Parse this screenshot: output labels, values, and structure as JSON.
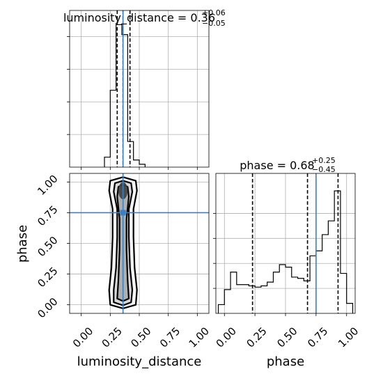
{
  "colors": {
    "truth": "#3b7fc4",
    "hist": "#000000",
    "quantile": "#000000",
    "grid": "#b0b0b0",
    "contour_fill_light": "#e8e8e8",
    "contour_fill_dark": "#404040",
    "points": "#000000"
  },
  "chart_data": [
    {
      "panel": "luminosity_distance marginal",
      "type": "histogram",
      "title_label": "luminosity_distance = 0.36",
      "title_sup": "+0.06",
      "title_sub": "−0.05",
      "xlim": [
        -0.1,
        1.1
      ],
      "ylim": [
        0,
        1.0
      ],
      "grid": true,
      "bins": [
        {
          "x0": 0.2,
          "x1": 0.25,
          "h": 0.07
        },
        {
          "x0": 0.25,
          "x1": 0.3,
          "h": 0.54
        },
        {
          "x0": 0.3,
          "x1": 0.35,
          "h": 1.0
        },
        {
          "x0": 0.35,
          "x1": 0.4,
          "h": 0.93
        },
        {
          "x0": 0.4,
          "x1": 0.45,
          "h": 0.18
        },
        {
          "x0": 0.45,
          "x1": 0.5,
          "h": 0.05
        },
        {
          "x0": 0.5,
          "x1": 0.55,
          "h": 0.02
        }
      ],
      "quantiles": [
        0.31,
        0.36,
        0.42
      ],
      "truth": 0.36
    },
    {
      "panel": "phase marginal",
      "type": "histogram",
      "title_label": "phase = 0.68",
      "title_sup": "+0.25",
      "title_sub": "−0.45",
      "xlim": [
        -0.07,
        1.07
      ],
      "ylim": [
        0,
        1.0
      ],
      "xlabel": "phase",
      "xticks": [
        "0.00",
        "0.25",
        "0.50",
        "0.75",
        "1.00"
      ],
      "xtick_values": [
        0,
        0.25,
        0.5,
        0.75,
        1.0
      ],
      "grid": true,
      "bins": [
        {
          "x0": -0.05,
          "x1": 0.0,
          "h": 0.07
        },
        {
          "x0": 0.0,
          "x1": 0.05,
          "h": 0.19
        },
        {
          "x0": 0.05,
          "x1": 0.1,
          "h": 0.33
        },
        {
          "x0": 0.1,
          "x1": 0.15,
          "h": 0.23
        },
        {
          "x0": 0.15,
          "x1": 0.2,
          "h": 0.23
        },
        {
          "x0": 0.2,
          "x1": 0.25,
          "h": 0.22
        },
        {
          "x0": 0.25,
          "x1": 0.3,
          "h": 0.21
        },
        {
          "x0": 0.3,
          "x1": 0.35,
          "h": 0.22
        },
        {
          "x0": 0.35,
          "x1": 0.4,
          "h": 0.25
        },
        {
          "x0": 0.4,
          "x1": 0.45,
          "h": 0.33
        },
        {
          "x0": 0.45,
          "x1": 0.5,
          "h": 0.39
        },
        {
          "x0": 0.5,
          "x1": 0.55,
          "h": 0.37
        },
        {
          "x0": 0.55,
          "x1": 0.6,
          "h": 0.29
        },
        {
          "x0": 0.6,
          "x1": 0.65,
          "h": 0.28
        },
        {
          "x0": 0.65,
          "x1": 0.7,
          "h": 0.26
        },
        {
          "x0": 0.7,
          "x1": 0.75,
          "h": 0.46
        },
        {
          "x0": 0.75,
          "x1": 0.8,
          "h": 0.5
        },
        {
          "x0": 0.8,
          "x1": 0.85,
          "h": 0.63
        },
        {
          "x0": 0.85,
          "x1": 0.9,
          "h": 0.74
        },
        {
          "x0": 0.9,
          "x1": 0.95,
          "h": 0.98
        },
        {
          "x0": 0.95,
          "x1": 1.0,
          "h": 0.32
        },
        {
          "x0": 1.0,
          "x1": 1.05,
          "h": 0.08
        }
      ],
      "quantiles": [
        0.23,
        0.68,
        0.93
      ],
      "truth": 0.75
    },
    {
      "panel": "luminosity_distance vs phase",
      "type": "scatter",
      "xlabel": "luminosity_distance",
      "ylabel": "phase",
      "xlim": [
        -0.1,
        1.1
      ],
      "ylim": [
        -0.07,
        1.07
      ],
      "xticks": [
        "0.00",
        "0.25",
        "0.50",
        "0.75",
        "1.00"
      ],
      "xtick_values": [
        0,
        0.25,
        0.5,
        0.75,
        1.0
      ],
      "yticks": [
        "0.00",
        "0.25",
        "0.50",
        "0.75",
        "1.00"
      ],
      "ytick_values": [
        0,
        0.25,
        0.5,
        0.75,
        1.0
      ],
      "grid": true,
      "truth": {
        "x": 0.36,
        "y": 0.75
      },
      "points_x_range": [
        0.22,
        0.55
      ],
      "points_y_range": [
        -0.02,
        1.02
      ],
      "contours": [
        {
          "level": "outer",
          "points": [
            [
              0.25,
              0.0
            ],
            [
              0.24,
              0.12
            ],
            [
              0.26,
              0.3
            ],
            [
              0.27,
              0.55
            ],
            [
              0.27,
              0.78
            ],
            [
              0.24,
              0.93
            ],
            [
              0.25,
              1.01
            ],
            [
              0.36,
              1.04
            ],
            [
              0.47,
              1.01
            ],
            [
              0.48,
              0.93
            ],
            [
              0.45,
              0.78
            ],
            [
              0.45,
              0.55
            ],
            [
              0.46,
              0.3
            ],
            [
              0.48,
              0.12
            ],
            [
              0.47,
              0.0
            ],
            [
              0.36,
              -0.03
            ]
          ]
        },
        {
          "level": "middle",
          "points": [
            [
              0.28,
              0.02
            ],
            [
              0.28,
              0.12
            ],
            [
              0.3,
              0.3
            ],
            [
              0.31,
              0.55
            ],
            [
              0.31,
              0.78
            ],
            [
              0.28,
              0.92
            ],
            [
              0.29,
              0.99
            ],
            [
              0.36,
              1.01
            ],
            [
              0.43,
              0.99
            ],
            [
              0.44,
              0.92
            ],
            [
              0.41,
              0.78
            ],
            [
              0.41,
              0.55
            ],
            [
              0.42,
              0.3
            ],
            [
              0.44,
              0.12
            ],
            [
              0.43,
              0.02
            ],
            [
              0.36,
              -0.005
            ]
          ]
        },
        {
          "level": "inner",
          "points": [
            [
              0.31,
              0.05
            ],
            [
              0.32,
              0.2
            ],
            [
              0.33,
              0.45
            ],
            [
              0.33,
              0.7
            ],
            [
              0.31,
              0.88
            ],
            [
              0.32,
              0.96
            ],
            [
              0.36,
              0.98
            ],
            [
              0.4,
              0.96
            ],
            [
              0.41,
              0.88
            ],
            [
              0.39,
              0.7
            ],
            [
              0.39,
              0.45
            ],
            [
              0.4,
              0.2
            ],
            [
              0.41,
              0.05
            ],
            [
              0.36,
              0.03
            ]
          ]
        }
      ],
      "dense_core": {
        "x0": 0.32,
        "x1": 0.4,
        "y0": 0.86,
        "y1": 1.0
      }
    }
  ]
}
